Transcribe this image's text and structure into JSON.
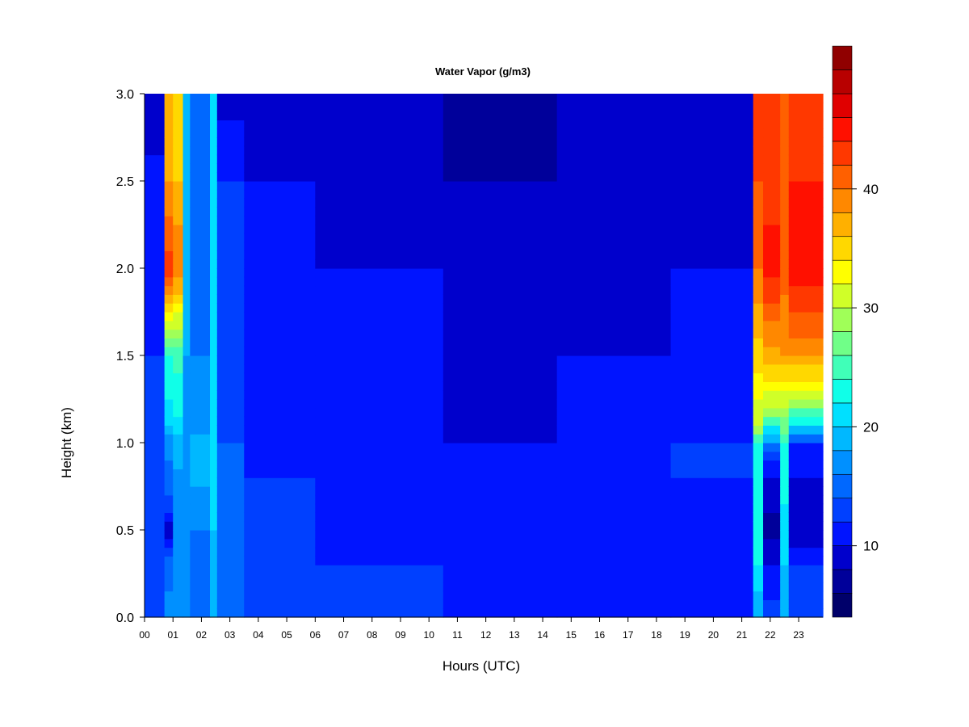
{
  "chart_data": {
    "type": "heatmap",
    "title": "Water Vapor (g/m3)",
    "xlabel": "Hours (UTC)",
    "ylabel": "Height (km)",
    "x_tick_labels": [
      "00",
      "01",
      "02",
      "03",
      "04",
      "05",
      "06",
      "07",
      "08",
      "09",
      "10",
      "11",
      "12",
      "13",
      "14",
      "15",
      "16",
      "17",
      "18",
      "19",
      "20",
      "21",
      "22",
      "23"
    ],
    "y_tick_labels": [
      "0.0",
      "0.5",
      "1.0",
      "1.5",
      "2.0",
      "2.5",
      "3.0"
    ],
    "xlim": [
      0,
      23.85
    ],
    "ylim": [
      0,
      3.0
    ],
    "colorbar": {
      "range": [
        4,
        48
      ],
      "step": 2,
      "tick_labels": [
        "10",
        "20",
        "30",
        "40"
      ],
      "colors": [
        "#00006a",
        "#00009a",
        "#0000cc",
        "#0014ff",
        "#0040ff",
        "#0068ff",
        "#0090ff",
        "#00b8ff",
        "#00e0ff",
        "#10ffe8",
        "#40ffb8",
        "#70ff88",
        "#a0ff58",
        "#d0ff28",
        "#ffff00",
        "#ffd800",
        "#ffb000",
        "#ff8800",
        "#ff6000",
        "#ff3800",
        "#ff1000",
        "#e00000",
        "#b80000",
        "#900000"
      ]
    },
    "bands": [
      {
        "x": [
          0.0,
          0.7
        ],
        "profile": [
          [
            0,
            14
          ],
          [
            0.3,
            13
          ],
          [
            0.8,
            13
          ],
          [
            1.5,
            12
          ],
          [
            2.3,
            11
          ],
          [
            3.0,
            9
          ]
        ]
      },
      {
        "x": [
          0.7,
          1.0
        ],
        "profile": [
          [
            0,
            17
          ],
          [
            0.3,
            15
          ],
          [
            0.5,
            9
          ],
          [
            0.7,
            14
          ],
          [
            1.0,
            17
          ],
          [
            1.15,
            21
          ],
          [
            1.5,
            24
          ],
          [
            1.7,
            31
          ],
          [
            2.0,
            43
          ],
          [
            2.5,
            38
          ],
          [
            3.0,
            37
          ]
        ]
      },
      {
        "x": [
          1.0,
          1.35
        ],
        "profile": [
          [
            0,
            18
          ],
          [
            0.5,
            16
          ],
          [
            1.0,
            19
          ],
          [
            1.15,
            22
          ],
          [
            1.5,
            25
          ],
          [
            1.7,
            31
          ],
          [
            2.0,
            40
          ],
          [
            2.5,
            36
          ],
          [
            3.0,
            34
          ]
        ]
      },
      {
        "x": [
          1.35,
          1.6
        ],
        "profile": [
          [
            0,
            16
          ],
          [
            0.5,
            17
          ],
          [
            1.0,
            17
          ],
          [
            1.5,
            18
          ],
          [
            2.0,
            19
          ],
          [
            3.0,
            19
          ]
        ]
      },
      {
        "x": [
          1.6,
          2.3
        ],
        "profile": [
          [
            0,
            15
          ],
          [
            0.5,
            16
          ],
          [
            0.9,
            19
          ],
          [
            1.2,
            17
          ],
          [
            1.5,
            16
          ],
          [
            2.0,
            15
          ],
          [
            3.0,
            14
          ]
        ]
      },
      {
        "x": [
          2.3,
          2.55
        ],
        "profile": [
          [
            0,
            18
          ],
          [
            0.5,
            20
          ],
          [
            1.0,
            21
          ],
          [
            1.5,
            20
          ],
          [
            2.0,
            21
          ],
          [
            3.0,
            20
          ]
        ]
      },
      {
        "x": [
          2.55,
          3.5
        ],
        "profile": [
          [
            0,
            14
          ],
          [
            0.5,
            14
          ],
          [
            1.0,
            14
          ],
          [
            1.5,
            13
          ],
          [
            2.0,
            13
          ],
          [
            2.5,
            12
          ],
          [
            3.0,
            9
          ]
        ]
      },
      {
        "x": [
          3.5,
          6.0
        ],
        "profile": [
          [
            0,
            14
          ],
          [
            0.3,
            13
          ],
          [
            0.8,
            12
          ],
          [
            1.5,
            11
          ],
          [
            2.0,
            11
          ],
          [
            2.5,
            10
          ],
          [
            3.0,
            9
          ]
        ]
      },
      {
        "x": [
          6.0,
          10.5
        ],
        "profile": [
          [
            0,
            14
          ],
          [
            0.2,
            13
          ],
          [
            0.4,
            11
          ],
          [
            1.0,
            11
          ],
          [
            1.5,
            11
          ],
          [
            2.0,
            10
          ],
          [
            2.5,
            9
          ],
          [
            3.0,
            8
          ]
        ]
      },
      {
        "x": [
          10.5,
          14.5
        ],
        "profile": [
          [
            0,
            10
          ],
          [
            0.5,
            10
          ],
          [
            1.0,
            10
          ],
          [
            1.5,
            9
          ],
          [
            2.0,
            9
          ],
          [
            2.5,
            8
          ],
          [
            3.0,
            7
          ]
        ]
      },
      {
        "x": [
          14.5,
          18.5
        ],
        "profile": [
          [
            0,
            10
          ],
          [
            0.5,
            10
          ],
          [
            1.0,
            10
          ],
          [
            1.5,
            10
          ],
          [
            2.0,
            9
          ],
          [
            2.5,
            9
          ],
          [
            3.0,
            8
          ]
        ]
      },
      {
        "x": [
          18.5,
          21.4
        ],
        "profile": [
          [
            0,
            10
          ],
          [
            0.5,
            10
          ],
          [
            0.8,
            12
          ],
          [
            1.0,
            12
          ],
          [
            1.5,
            11
          ],
          [
            2.0,
            10
          ],
          [
            3.0,
            9
          ]
        ]
      },
      {
        "x": [
          21.4,
          21.75
        ],
        "profile": [
          [
            0,
            18
          ],
          [
            0.3,
            22
          ],
          [
            0.5,
            22
          ],
          [
            1.0,
            22
          ],
          [
            1.1,
            30
          ],
          [
            1.5,
            35
          ],
          [
            2.0,
            40
          ],
          [
            2.5,
            42
          ],
          [
            3.0,
            42
          ]
        ]
      },
      {
        "x": [
          21.75,
          22.35
        ],
        "profile": [
          [
            0,
            13
          ],
          [
            0.3,
            10
          ],
          [
            0.5,
            7
          ],
          [
            0.9,
            11
          ],
          [
            1.0,
            17
          ],
          [
            1.2,
            30
          ],
          [
            1.5,
            37
          ],
          [
            2.0,
            45
          ],
          [
            2.5,
            43
          ],
          [
            3.0,
            42
          ]
        ]
      },
      {
        "x": [
          22.35,
          22.65
        ],
        "profile": [
          [
            0,
            18
          ],
          [
            0.3,
            20
          ],
          [
            0.5,
            21
          ],
          [
            1.0,
            24
          ],
          [
            1.5,
            38
          ],
          [
            2.0,
            41
          ],
          [
            2.5,
            41
          ],
          [
            3.0,
            41
          ]
        ]
      },
      {
        "x": [
          22.65,
          23.85
        ],
        "profile": [
          [
            0,
            14
          ],
          [
            0.3,
            12
          ],
          [
            0.5,
            8
          ],
          [
            0.8,
            10
          ],
          [
            1.0,
            12
          ],
          [
            1.1,
            22
          ],
          [
            1.3,
            32
          ],
          [
            1.6,
            40
          ],
          [
            2.0,
            45
          ],
          [
            2.5,
            44
          ],
          [
            3.0,
            43
          ]
        ]
      }
    ]
  }
}
